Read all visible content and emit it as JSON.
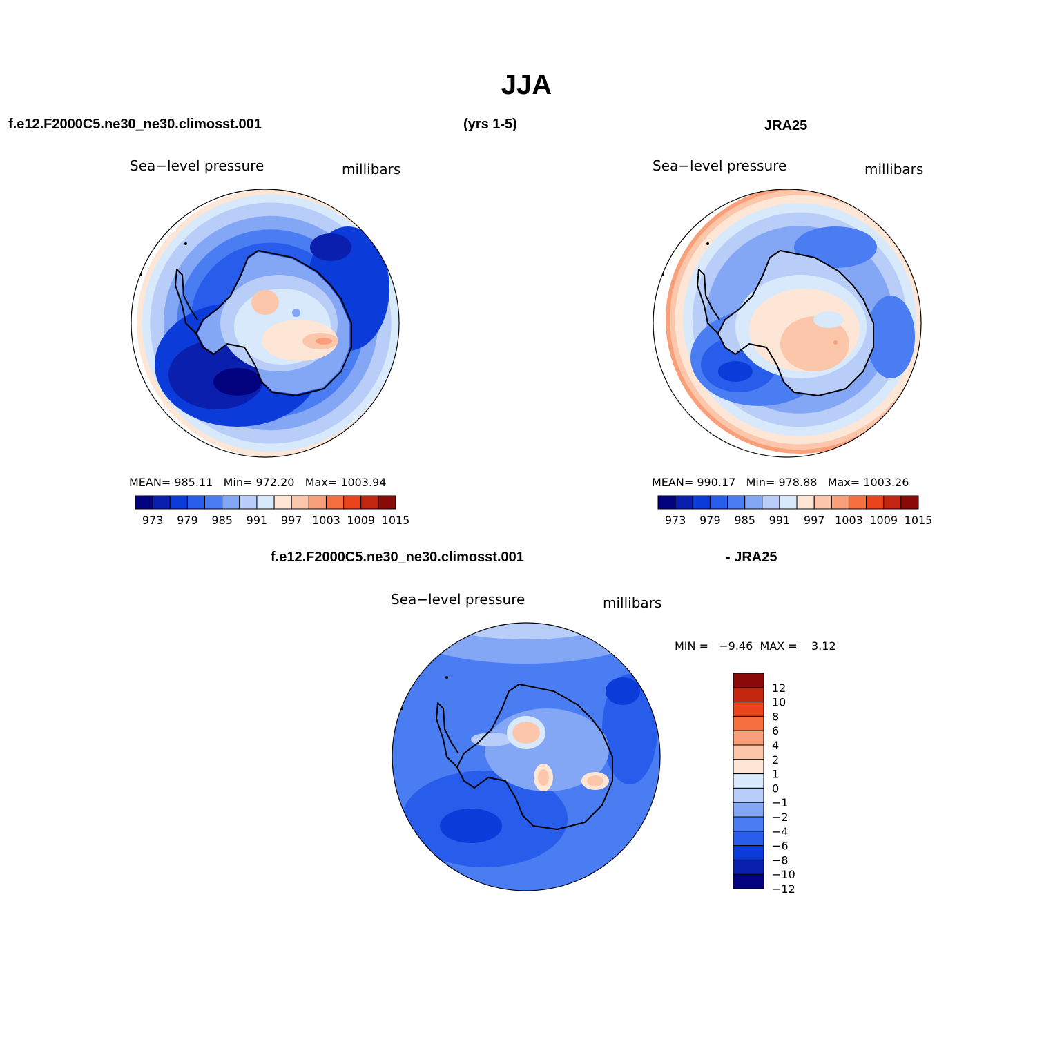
{
  "header": {
    "title": "JJA",
    "model_case": "f.e12.F2000C5.ne30_ne30.climosst.001",
    "years": "(yrs 1-5)",
    "obs_name": "JRA25"
  },
  "diff_header": {
    "model_case": "f.e12.F2000C5.ne30_ne30.climosst.001",
    "obs_suffix": "- JRA25"
  },
  "colors": {
    "abs_palette": [
      "#02027f",
      "#0a1fae",
      "#0b3bd9",
      "#285ceb",
      "#4a7cf2",
      "#83a6f5",
      "#b9cdf9",
      "#d8e9fc",
      "#fde6d6",
      "#fcc6ab",
      "#f9a07a",
      "#f5703f",
      "#e9441c",
      "#c2260e",
      "#8a0a08"
    ],
    "diff_palette": [
      "#02027f",
      "#0a1fae",
      "#0b3bd9",
      "#285ceb",
      "#4a7cf2",
      "#83a6f5",
      "#b9cdf9",
      "#d8e9fc",
      "#fde6d6",
      "#fcc6ab",
      "#f9a07a",
      "#f5703f",
      "#e9441c",
      "#c2260e",
      "#8a0a08"
    ]
  },
  "chart_data": [
    {
      "type": "heatmap",
      "projection": "south polar stereographic",
      "title": "Sea−level pressure",
      "units": "millibars",
      "stats_text": "MEAN= 985.11   Min= 972.20   Max= 1003.94",
      "mean": 985.11,
      "min": 972.2,
      "max": 1003.94,
      "colorbar_levels": [
        "973",
        "979",
        "985",
        "991",
        "997",
        "1003",
        "1009",
        "1015"
      ],
      "field": [
        {
          "level": 0,
          "value": 972,
          "shape": "low",
          "cx": -120,
          "cy": 40,
          "rx": 35,
          "ry": 20
        },
        {
          "level": 8,
          "value": 997,
          "shape": "ridge",
          "cx": 20,
          "cy": 10,
          "rx": 70,
          "ry": 50
        },
        {
          "level": 10,
          "value": 1003,
          "shape": "peak",
          "cx": 85,
          "cy": 26,
          "rx": 18,
          "ry": 8
        }
      ]
    },
    {
      "type": "heatmap",
      "projection": "south polar stereographic",
      "title": "Sea−level pressure",
      "units": "millibars",
      "stats_text": "MEAN= 990.17   Min= 978.88   Max= 1003.26",
      "mean": 990.17,
      "min": 978.88,
      "max": 1003.26,
      "colorbar_levels": [
        "973",
        "979",
        "985",
        "991",
        "997",
        "1003",
        "1009",
        "1015"
      ],
      "field": [
        {
          "level": 2,
          "value": 979,
          "shape": "low",
          "cx": -120,
          "cy": 50,
          "rx": 30,
          "ry": 20
        },
        {
          "level": 8,
          "value": 997,
          "shape": "ridge",
          "cx": 30,
          "cy": 10,
          "rx": 80,
          "ry": 60
        },
        {
          "level": 10,
          "value": 1003,
          "shape": "peak",
          "cx": 70,
          "cy": 30,
          "rx": 14,
          "ry": 14
        }
      ]
    },
    {
      "type": "heatmap",
      "projection": "south polar stereographic",
      "title": "Sea−level pressure",
      "units": "millibars",
      "stats_text": "MIN =   −9.46  MAX =    3.12",
      "min": -9.46,
      "max": 3.12,
      "colorbar_levels": [
        "12",
        "10",
        "8",
        "6",
        "4",
        "2",
        "1",
        "0",
        "−1",
        "−2",
        "−4",
        "−6",
        "−8",
        "−10",
        "−12"
      ],
      "field": [
        {
          "level": 4,
          "value": -6,
          "shape": "broad",
          "cx": -60,
          "cy": 80,
          "rx": 110,
          "ry": 60
        },
        {
          "level": 9,
          "value": 2,
          "shape": "peak",
          "cx": 0,
          "cy": -35,
          "rx": 25,
          "ry": 20
        },
        {
          "level": 9,
          "value": 2,
          "shape": "peak",
          "cx": 100,
          "cy": 35,
          "rx": 18,
          "ry": 12
        }
      ]
    }
  ]
}
